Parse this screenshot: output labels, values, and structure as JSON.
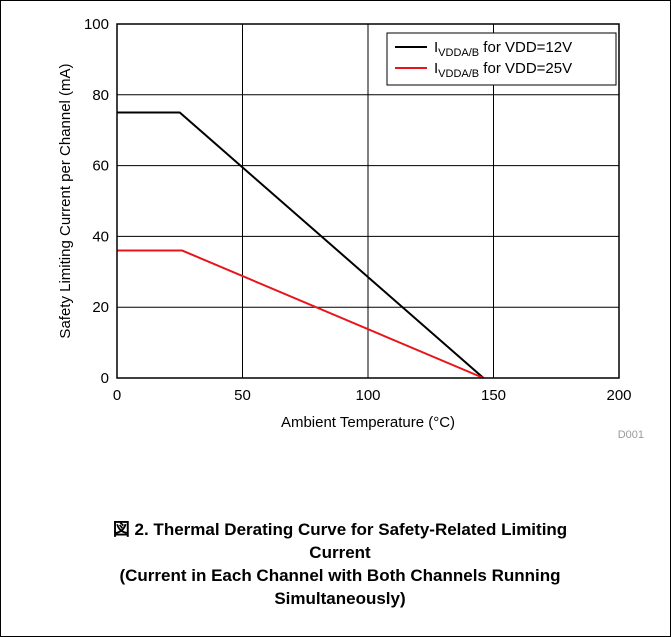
{
  "chart_data": {
    "type": "line",
    "xlabel": "Ambient Temperature (°C)",
    "ylabel": "Safety Limiting Current per Channel (mA)",
    "xlim": [
      0,
      200
    ],
    "ylim": [
      0,
      100
    ],
    "x_ticks": [
      "0",
      "50",
      "100",
      "150",
      "200"
    ],
    "y_ticks": [
      "0",
      "20",
      "40",
      "60",
      "80",
      "100"
    ],
    "grid": true,
    "legend_position": "top-right",
    "series": [
      {
        "name_main": "I",
        "name_sub": "VDDA/B",
        "name_rest": " for VDD=12V",
        "color": "#000000",
        "x": [
          0,
          25,
          146
        ],
        "y": [
          75,
          75,
          0
        ]
      },
      {
        "name_main": "I",
        "name_sub": "VDDA/B",
        "name_rest": " for VDD=25V",
        "color": "#e8141b",
        "x": [
          0,
          26,
          146
        ],
        "y": [
          36,
          36,
          0
        ]
      }
    ],
    "figure_code": "D001"
  },
  "caption": {
    "line1": "図 2. Thermal Derating Curve for Safety-Related Limiting",
    "line2": "Current",
    "line3": "(Current in Each Channel with Both Channels Running",
    "line4": "Simultaneously)"
  }
}
